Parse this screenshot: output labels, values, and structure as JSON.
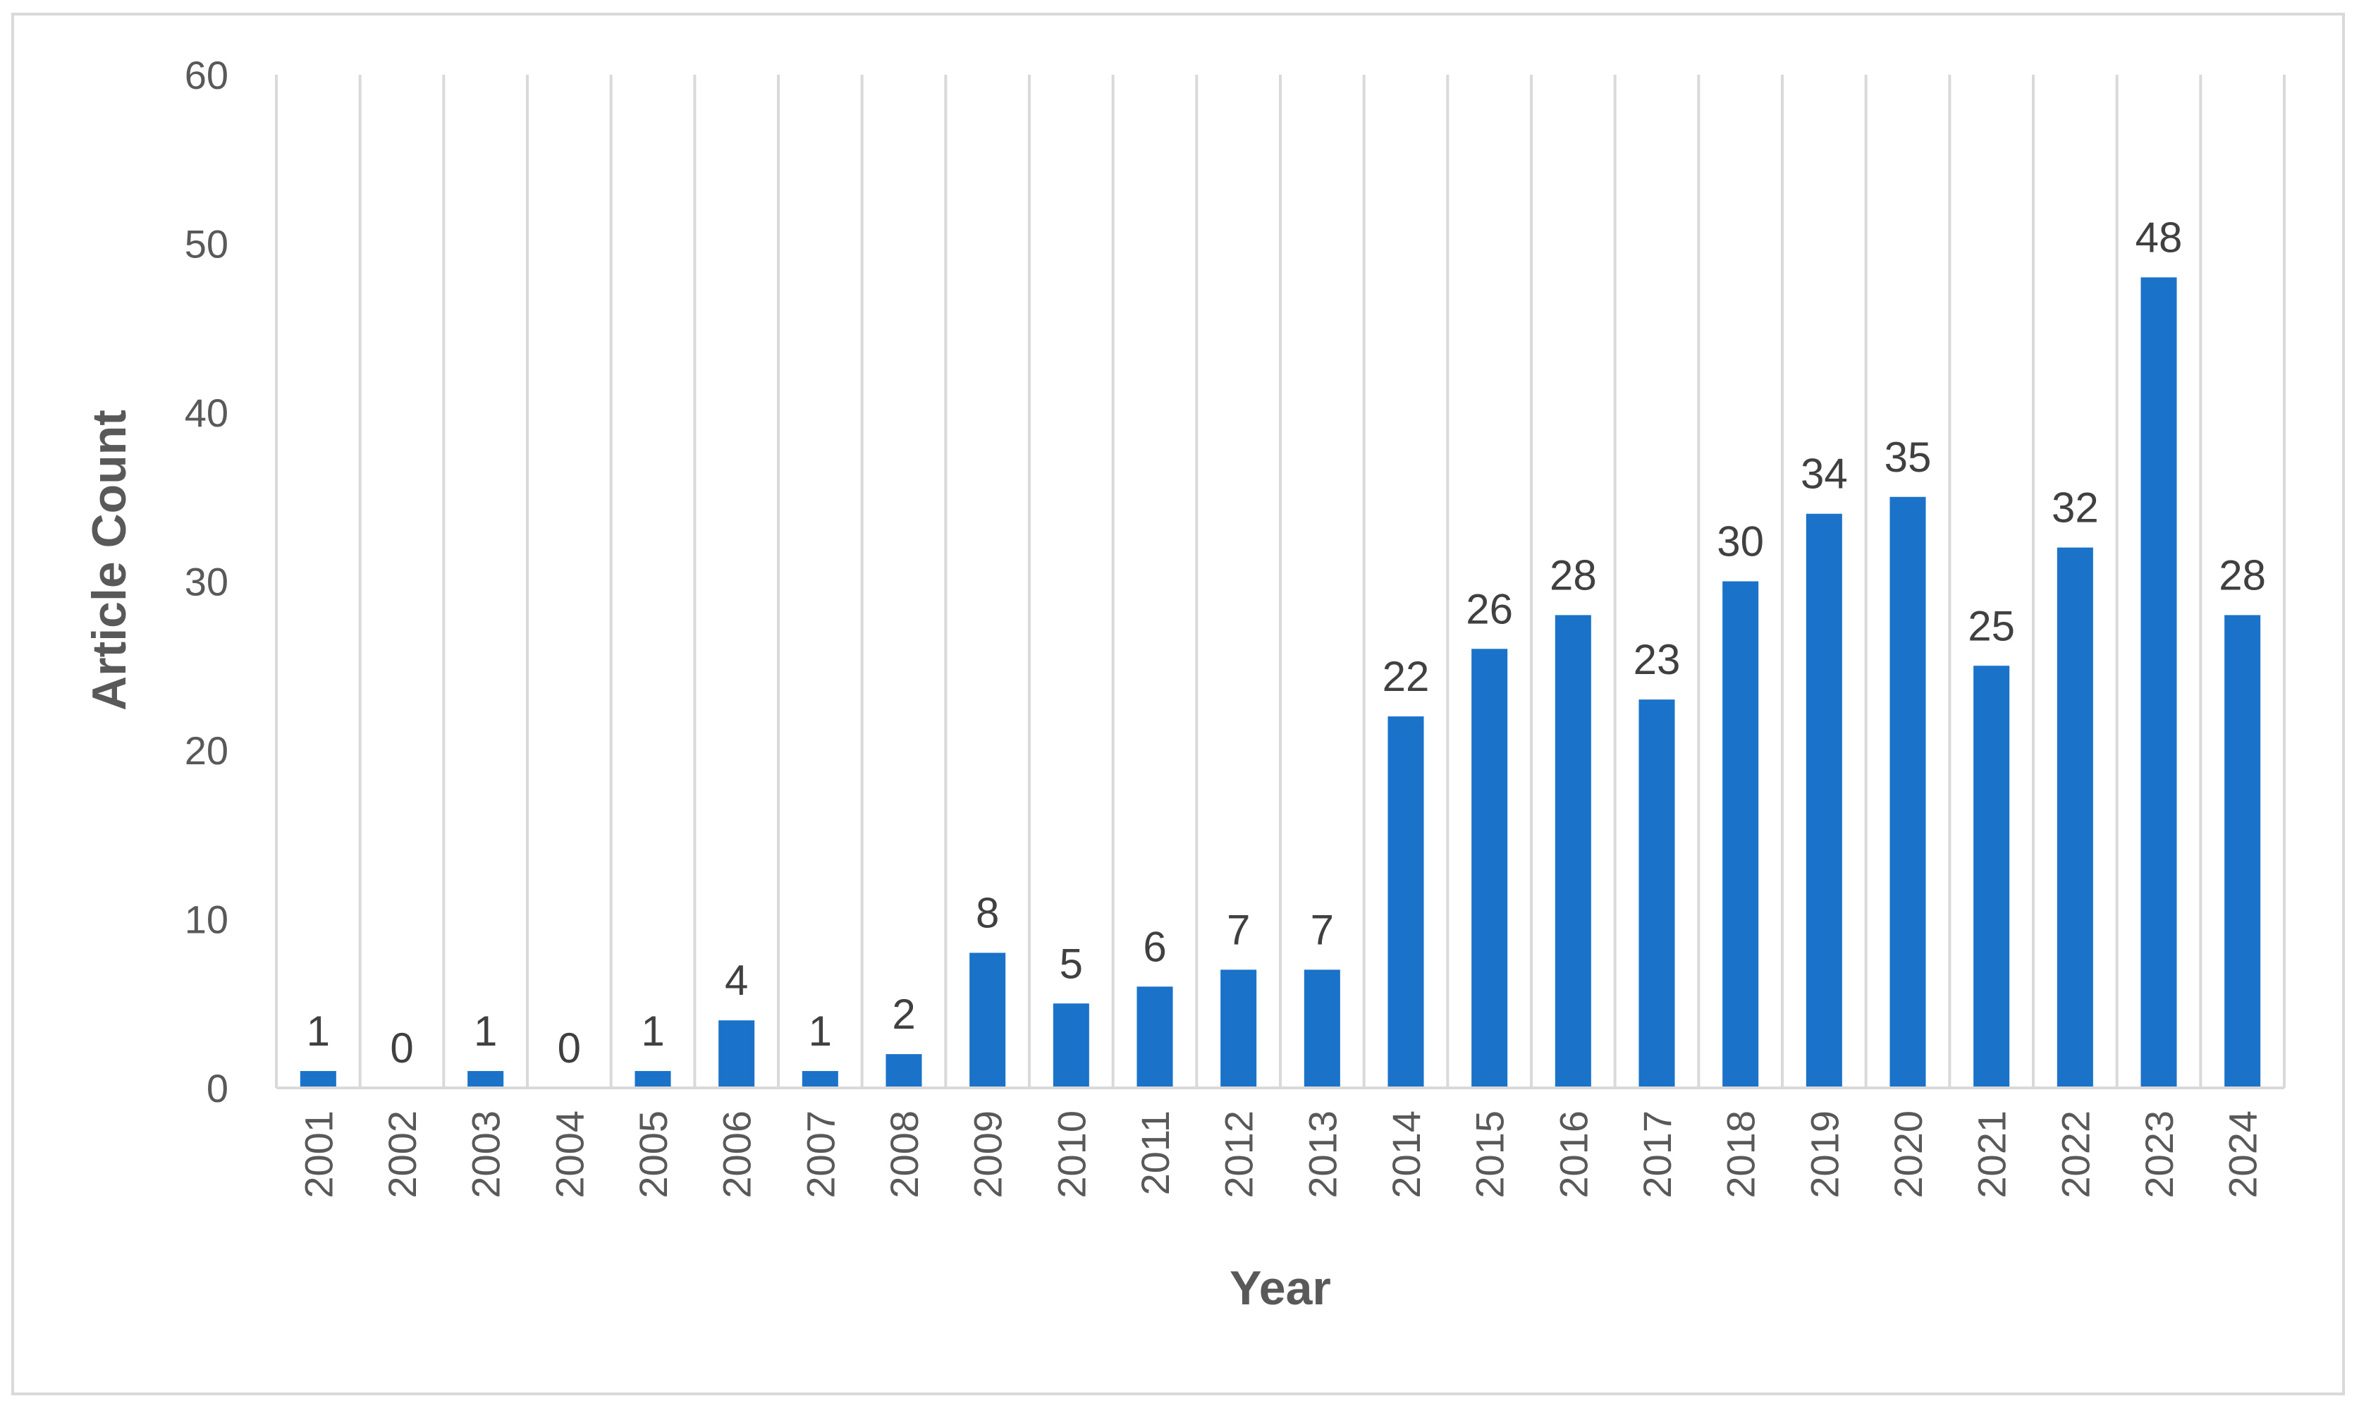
{
  "chart_data": {
    "type": "bar",
    "title": "",
    "xlabel": "Year",
    "ylabel": "Article Count",
    "ylim": [
      0,
      60
    ],
    "yticks": [
      0,
      10,
      20,
      30,
      40,
      50,
      60
    ],
    "grid": "vertical",
    "legend": "none",
    "bar_color": "#1a73c8",
    "categories": [
      "2001",
      "2002",
      "2003",
      "2004",
      "2005",
      "2006",
      "2007",
      "2008",
      "2009",
      "2010",
      "2011",
      "2012",
      "2013",
      "2014",
      "2015",
      "2016",
      "2017",
      "2018",
      "2019",
      "2020",
      "2021",
      "2022",
      "2023",
      "2024"
    ],
    "values": [
      1,
      0,
      1,
      0,
      1,
      4,
      1,
      2,
      8,
      5,
      6,
      7,
      7,
      22,
      26,
      28,
      23,
      30,
      34,
      35,
      25,
      32,
      48,
      28
    ]
  }
}
